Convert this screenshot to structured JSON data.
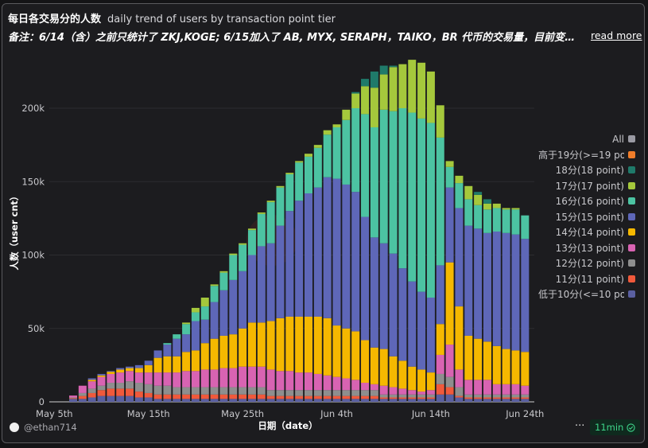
{
  "header": {
    "title": "每日各交易分的人数",
    "subtitle": "daily trend of users by transaction point tier",
    "note": "备注：6/14（含）之前只统计了 ZKJ,KOGE; 6/15加入了 AB, MYX, SERAPH，TAIKO，BR 代币的交易量，目前变化趋...",
    "read_more": "read more"
  },
  "footer": {
    "user": "@ethan714",
    "more": "···",
    "refresh": "11min",
    "refresh_icon": "check-circle-icon"
  },
  "chart_data": {
    "type": "bar",
    "stacked": true,
    "xlabel": "日期（date）",
    "ylabel": "人数（user cnt）",
    "ylim": [
      0,
      235000
    ],
    "grid": true,
    "legend_position": "right",
    "y_ticks": [
      "0",
      "50k",
      "100k",
      "150k",
      "200k"
    ],
    "x_ticks": [
      "May 5th",
      "May 15th",
      "May 25th",
      "Jun 4th",
      "Jun 14th",
      "Jun 24th"
    ],
    "legend": [
      {
        "name": "All",
        "color": "#9a9aa3"
      },
      {
        "name": "高于19分(>=19 point)",
        "color": "#f07d2a"
      },
      {
        "name": "18分(18 point)",
        "color": "#1f7a6a"
      },
      {
        "name": "17分(17 point)",
        "color": "#a5c83c"
      },
      {
        "name": "16分(16 point)",
        "color": "#4cc3a2"
      },
      {
        "name": "15分(15 point)",
        "color": "#5e67b8"
      },
      {
        "name": "14分(14 point)",
        "color": "#f5b800"
      },
      {
        "name": "13分(13 point)",
        "color": "#d863b2"
      },
      {
        "name": "12分(12 point)",
        "color": "#8e8e8e"
      },
      {
        "name": "11分(11 point)",
        "color": "#f0593b"
      },
      {
        "name": "低于10分(<=10 point)",
        "color": "#5a5fa0"
      }
    ],
    "x": [
      "May 7",
      "May 8",
      "May 9",
      "May 10",
      "May 11",
      "May 12",
      "May 13",
      "May 14",
      "May 15",
      "May 16",
      "May 17",
      "May 18",
      "May 19",
      "May 20",
      "May 21",
      "May 22",
      "May 23",
      "May 24",
      "May 25",
      "May 26",
      "May 27",
      "May 28",
      "May 29",
      "May 30",
      "May 31",
      "Jun 1",
      "Jun 2",
      "Jun 3",
      "Jun 4",
      "Jun 5",
      "Jun 6",
      "Jun 7",
      "Jun 8",
      "Jun 9",
      "Jun 10",
      "Jun 11",
      "Jun 12",
      "Jun 13",
      "Jun 14",
      "Jun 15",
      "Jun 16",
      "Jun 17",
      "Jun 18",
      "Jun 19",
      "Jun 20",
      "Jun 21",
      "Jun 22",
      "Jun 23",
      "Jun 24"
    ],
    "series": [
      {
        "name": "低于10分(<=10 point)",
        "color": "#5a5fa0",
        "values": [
          2000,
          2000,
          3000,
          4000,
          4000,
          4000,
          4000,
          3000,
          3000,
          2000,
          2000,
          2000,
          2000,
          2000,
          2000,
          2000,
          2000,
          2000,
          2000,
          2000,
          2000,
          2000,
          2000,
          2000,
          2000,
          2000,
          2000,
          2000,
          2000,
          2000,
          2000,
          2000,
          2000,
          2000,
          2000,
          2000,
          2000,
          2000,
          2000,
          5000,
          5000,
          3000,
          2000,
          2000,
          2000,
          2000,
          2000,
          2000,
          2000
        ]
      },
      {
        "name": "11分(11 point)",
        "color": "#f0593b",
        "values": [
          500,
          2000,
          3000,
          4000,
          5000,
          5000,
          5000,
          4000,
          3000,
          3000,
          3000,
          3000,
          3000,
          3000,
          3000,
          3000,
          3000,
          3000,
          3000,
          3000,
          3000,
          2000,
          2000,
          2000,
          2000,
          2000,
          2000,
          2000,
          2000,
          2000,
          2000,
          2000,
          2000,
          1000,
          1000,
          1000,
          1000,
          1000,
          1000,
          7000,
          5000,
          1000,
          1000,
          1000,
          1000,
          1000,
          1000,
          1000,
          1000
        ]
      },
      {
        "name": "12分(12 point)",
        "color": "#8e8e8e",
        "values": [
          500,
          2000,
          3000,
          3000,
          4000,
          4000,
          5000,
          6000,
          6000,
          6000,
          6000,
          5000,
          5000,
          5000,
          5000,
          5000,
          5000,
          5000,
          5000,
          5000,
          5000,
          4000,
          4000,
          4000,
          4000,
          4000,
          4000,
          4000,
          4000,
          4000,
          4000,
          4000,
          4000,
          2000,
          2000,
          2000,
          2000,
          2000,
          2000,
          7000,
          7000,
          6000,
          2000,
          2000,
          2000,
          2000,
          2000,
          2000,
          2000
        ]
      },
      {
        "name": "13分(13 point)",
        "color": "#d863b2",
        "values": [
          1300,
          5000,
          5000,
          6000,
          6000,
          7000,
          7000,
          7000,
          8000,
          9000,
          9000,
          10000,
          11000,
          11000,
          12000,
          12000,
          13000,
          13000,
          14000,
          14000,
          14000,
          14000,
          13000,
          13000,
          12000,
          12000,
          11000,
          10000,
          9000,
          8000,
          7000,
          5000,
          4000,
          6000,
          5000,
          4000,
          3000,
          2000,
          3000,
          13000,
          22000,
          12000,
          10000,
          10000,
          10000,
          7000,
          7000,
          7000,
          6000
        ]
      },
      {
        "name": "14分(14 point)",
        "color": "#f5b800",
        "values": [
          0,
          0,
          1000,
          1000,
          1500,
          2000,
          2000,
          3000,
          5000,
          10000,
          11000,
          11000,
          13000,
          14000,
          18000,
          21000,
          22000,
          23000,
          26000,
          30000,
          30000,
          33000,
          36000,
          37000,
          38000,
          38000,
          39000,
          39000,
          35000,
          34000,
          33000,
          29000,
          25000,
          25000,
          21000,
          19000,
          16000,
          15000,
          12000,
          21000,
          56000,
          43000,
          30000,
          28000,
          26000,
          26000,
          24000,
          23000,
          23000
        ]
      },
      {
        "name": "15分(15 point)",
        "color": "#5e67b8",
        "values": [
          0,
          0,
          1000,
          1000,
          500,
          1000,
          1000,
          2000,
          3000,
          5000,
          8000,
          12000,
          12000,
          20000,
          16000,
          25000,
          31000,
          37000,
          39000,
          46000,
          52000,
          53000,
          63000,
          72000,
          79000,
          84000,
          88000,
          96000,
          100000,
          98000,
          95000,
          84000,
          75000,
          72000,
          70000,
          63000,
          58000,
          53000,
          51000,
          40000,
          51000,
          67000,
          75000,
          75000,
          74000,
          78000,
          79000,
          79000,
          77000
        ]
      },
      {
        "name": "16分(16 point)",
        "color": "#4cc3a2",
        "values": [
          0,
          0,
          0,
          0,
          0,
          0,
          0,
          0,
          0,
          0,
          1000,
          3000,
          7000,
          6000,
          9000,
          11000,
          12000,
          17000,
          18000,
          17000,
          22000,
          28000,
          26000,
          25000,
          26000,
          25000,
          27000,
          29000,
          35000,
          44000,
          57000,
          70000,
          75000,
          91000,
          97000,
          109000,
          115000,
          118000,
          119000,
          87000,
          14000,
          17000,
          18000,
          16000,
          16000,
          16000,
          16000,
          17000,
          16000
        ]
      },
      {
        "name": "17分(17 point)",
        "color": "#a5c83c",
        "values": [
          0,
          0,
          0,
          0,
          0,
          0,
          0,
          0,
          0,
          0,
          0,
          0,
          1000,
          3000,
          6000,
          1000,
          1000,
          1000,
          1000,
          1000,
          1000,
          1000,
          1000,
          1000,
          1000,
          2000,
          2000,
          3000,
          2000,
          7000,
          10000,
          19000,
          27000,
          24000,
          30000,
          30000,
          36000,
          38000,
          35000,
          22000,
          4000,
          5000,
          9000,
          7000,
          4000,
          3000,
          1000,
          1000,
          0
        ]
      },
      {
        "name": "18分(18 point)",
        "color": "#1f7a6a",
        "values": [
          0,
          0,
          0,
          0,
          0,
          0,
          0,
          0,
          0,
          0,
          0,
          0,
          0,
          0,
          0,
          0,
          0,
          0,
          0,
          0,
          0,
          0,
          0,
          0,
          0,
          0,
          0,
          0,
          0,
          0,
          1000,
          5000,
          11000,
          6000,
          1000,
          0,
          0,
          0,
          0,
          0,
          0,
          0,
          0,
          2000,
          3000,
          0,
          0,
          0,
          0
        ]
      },
      {
        "name": "高于19分(>=19 point)",
        "color": "#f07d2a",
        "values": [
          0,
          0,
          0,
          0,
          0,
          0,
          0,
          0,
          0,
          0,
          0,
          0,
          0,
          0,
          0,
          0,
          0,
          0,
          0,
          0,
          0,
          0,
          0,
          0,
          0,
          0,
          0,
          0,
          0,
          0,
          0,
          0,
          0,
          0,
          0,
          0,
          0,
          0,
          0,
          0,
          0,
          0,
          0,
          0,
          0,
          0,
          0,
          0,
          0
        ]
      }
    ]
  }
}
